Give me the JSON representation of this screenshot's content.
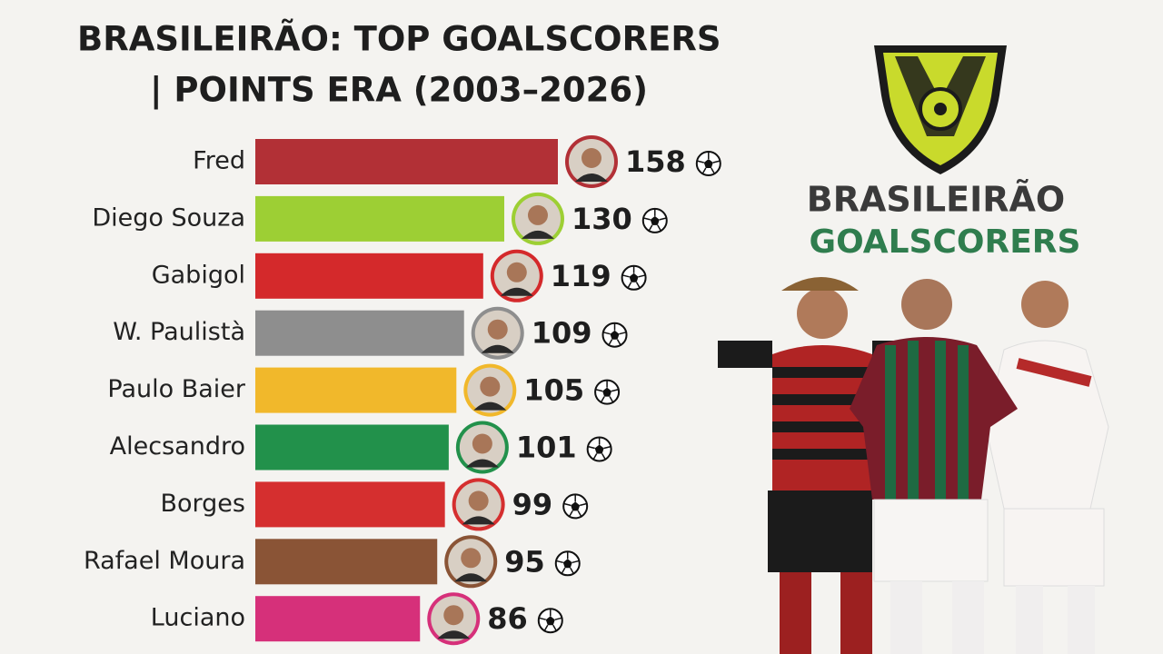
{
  "chart_data": {
    "type": "bar",
    "orientation": "horizontal",
    "title_lines": [
      "BRASILEIRÃO: TOP GOALSCORERS",
      "| POINTS ERA (2003–2026)"
    ],
    "logo_text": [
      "BRASILEIRÃO",
      "GOALSCORERS"
    ],
    "categories": [
      "Fred",
      "Diego Souza",
      "Gabigol",
      "W. Paulistà",
      "Paulo Baier",
      "Alecsandro",
      "Borges",
      "Rafael Moura",
      "Luciano"
    ],
    "values": [
      158,
      130,
      119,
      109,
      105,
      101,
      99,
      95,
      86
    ],
    "colors": [
      "#b23036",
      "#9dcf34",
      "#d4292b",
      "#8e8e8e",
      "#f1b82b",
      "#22914b",
      "#d52f2f",
      "#8a5436",
      "#d6307a"
    ]
  }
}
